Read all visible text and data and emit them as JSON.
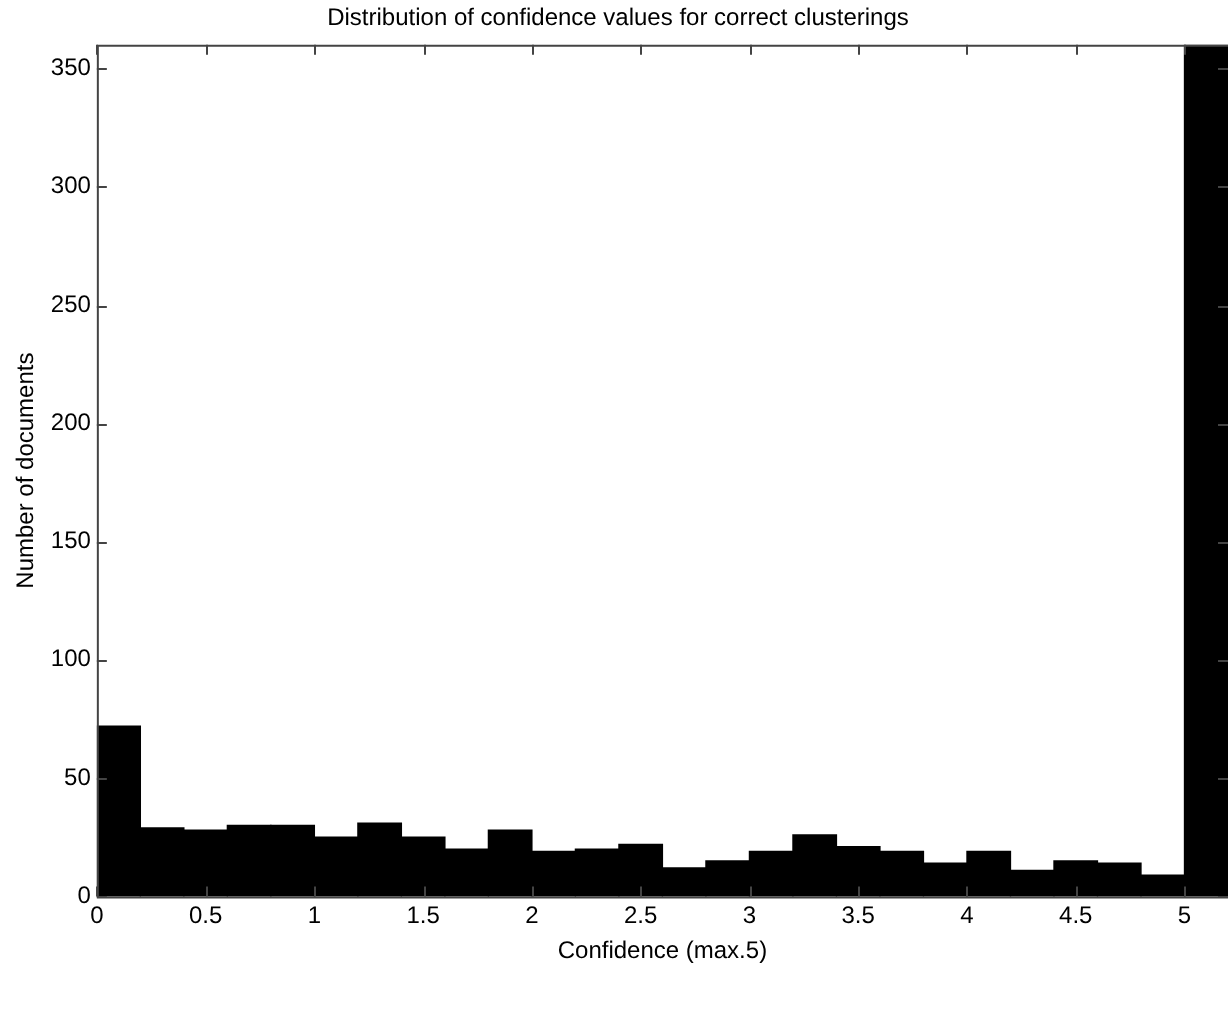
{
  "chart_data": {
    "type": "histogram",
    "title": "Distribution of confidence values for correct clusterings",
    "xlabel": "Confidence (max.5)",
    "ylabel": "Number of documents",
    "bins": [
      0,
      0.2,
      0.4,
      0.6,
      0.8,
      1,
      1.2,
      1.4,
      1.6,
      1.8,
      2,
      2.2,
      2.4,
      2.6,
      2.8,
      3,
      3.2,
      3.4,
      3.6,
      3.8,
      4,
      4.2,
      4.4,
      4.6,
      4.8,
      5,
      5.2
    ],
    "values": [
      72,
      29,
      28,
      30,
      30,
      25,
      31,
      25,
      20,
      28,
      19,
      20,
      22,
      12,
      15,
      19,
      26,
      21,
      19,
      14,
      19,
      11,
      15,
      14,
      9,
      360
    ],
    "color": "#000000",
    "xlim": [
      0,
      5.2
    ],
    "ylim": [
      0,
      360
    ],
    "xticks": [
      0,
      0.5,
      1,
      1.5,
      2,
      2.5,
      3,
      3.5,
      4,
      4.5,
      5
    ],
    "yticks": [
      0,
      50,
      100,
      150,
      200,
      250,
      300,
      350
    ],
    "grid": false,
    "legend": false
  }
}
